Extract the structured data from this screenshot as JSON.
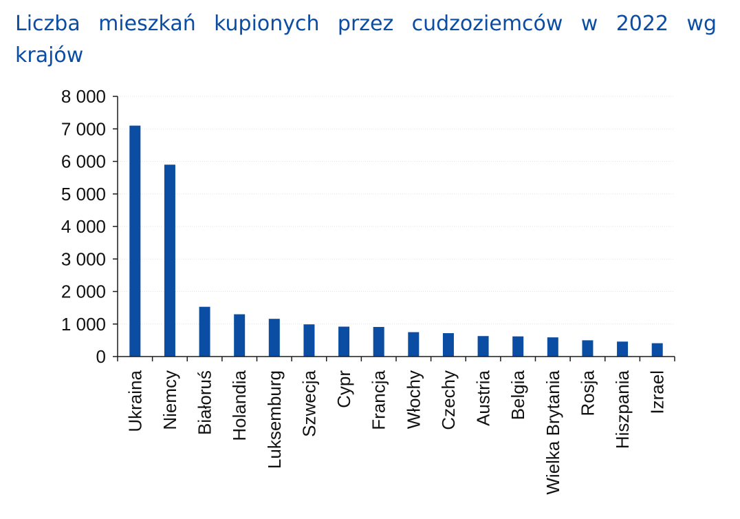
{
  "chart_data": {
    "type": "bar",
    "title": "Liczba mieszkań kupionych przez cudzoziemców w 2022 wg krajów",
    "xlabel": "",
    "ylabel": "",
    "categories": [
      "Ukraina",
      "Niemcy",
      "Białoruś",
      "Holandia",
      "Luksemburg",
      "Szwecja",
      "Cypr",
      "Francja",
      "Włochy",
      "Czechy",
      "Austria",
      "Belgia",
      "Wielka Brytania",
      "Rosja",
      "Hiszpania",
      "Izrael"
    ],
    "values": [
      7100,
      5900,
      1530,
      1300,
      1160,
      990,
      920,
      910,
      750,
      720,
      630,
      620,
      590,
      500,
      460,
      410
    ],
    "ylim": [
      0,
      8000
    ],
    "yticks": [
      0,
      1000,
      2000,
      3000,
      4000,
      5000,
      6000,
      7000,
      8000
    ],
    "ytick_labels": [
      "0",
      "1 000",
      "2 000",
      "3 000",
      "4 000",
      "5 000",
      "6 000",
      "7 000",
      "8 000"
    ],
    "grid": true,
    "legend": "none",
    "colors": {
      "bar": "#0b4da2",
      "title": "#0b4da2",
      "grid": "#e4e4e4",
      "axis": "#1a1a1a"
    }
  }
}
